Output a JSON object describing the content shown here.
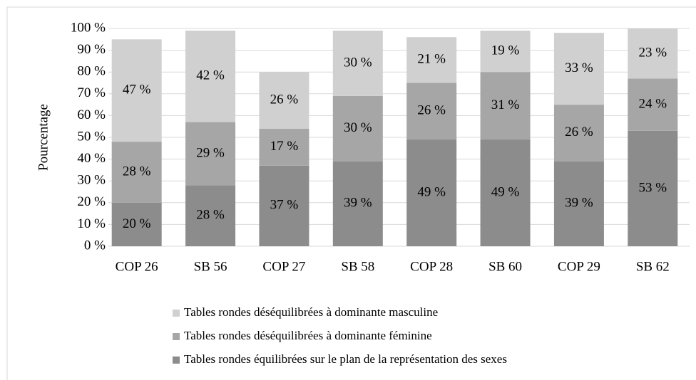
{
  "chart_data": {
    "type": "bar",
    "stacked": true,
    "y_label": "Pourcentage",
    "categories": [
      "COP 26",
      "SB 56",
      "COP 27",
      "SB 58",
      "COP 28",
      "SB 60",
      "COP 29",
      "SB 62"
    ],
    "series": [
      {
        "name": "Tables rondes équilibrées sur le plan de la représentation des sexes",
        "color": "#8c8c8c",
        "values": [
          20,
          28,
          37,
          39,
          49,
          49,
          39,
          53
        ],
        "value_labels": [
          "20 %",
          "28 %",
          "37 %",
          "39 %",
          "49 %",
          "49 %",
          "39 %",
          "53 %"
        ]
      },
      {
        "name": "Tables rondes déséquilibrées à dominante féminine",
        "color": "#a6a6a6",
        "values": [
          28,
          29,
          17,
          30,
          26,
          31,
          26,
          24
        ],
        "value_labels": [
          "28 %",
          "29 %",
          "17 %",
          "30 %",
          "26 %",
          "31 %",
          "26 %",
          "24 %"
        ]
      },
      {
        "name": "Tables rondes déséquilibrées à dominante masculine",
        "color": "#d0d0d0",
        "values": [
          47,
          42,
          26,
          30,
          21,
          19,
          33,
          23
        ],
        "value_labels": [
          "47 %",
          "42 %",
          "26 %",
          "30 %",
          "21 %",
          "19 %",
          "33 %",
          "23 %"
        ]
      }
    ],
    "ylim": [
      0,
      100
    ],
    "yticks": [
      {
        "value": 0,
        "label": "0 %"
      },
      {
        "value": 10,
        "label": "10 %"
      },
      {
        "value": 20,
        "label": "20 %"
      },
      {
        "value": 30,
        "label": "30 %"
      },
      {
        "value": 40,
        "label": "40 %"
      },
      {
        "value": 50,
        "label": "50 %"
      },
      {
        "value": 60,
        "label": "60 %"
      },
      {
        "value": 70,
        "label": "70 %"
      },
      {
        "value": 80,
        "label": "80 %"
      },
      {
        "value": 90,
        "label": "90 %"
      },
      {
        "value": 100,
        "label": "100 %"
      }
    ],
    "grid": true,
    "legend": "bottom"
  }
}
